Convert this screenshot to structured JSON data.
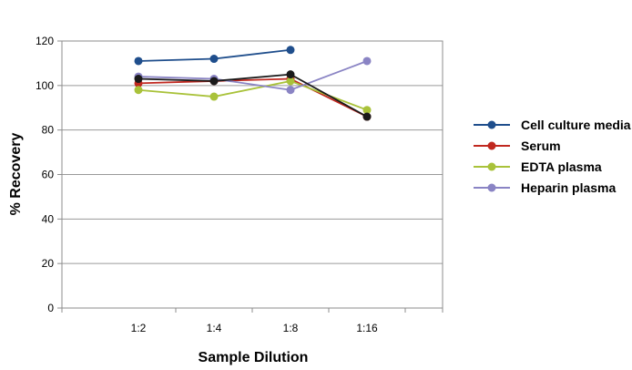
{
  "chart_data": {
    "type": "line",
    "categories": [
      "1:2",
      "1:4",
      "1:8",
      "1:16"
    ],
    "series": [
      {
        "name": "Cell culture media",
        "color": "#1F4E8C",
        "values": [
          111,
          112,
          116,
          null
        ]
      },
      {
        "name": "Serum",
        "color": "#C0281F",
        "values": [
          101,
          102,
          103,
          86
        ]
      },
      {
        "name": "EDTA plasma",
        "color": "#A9C23A",
        "values": [
          98,
          95,
          102,
          89
        ]
      },
      {
        "name": "Heparin plasma",
        "color": "#8A84C4",
        "values": [
          104,
          103,
          98,
          111
        ]
      },
      {
        "color": "#1A1A1A",
        "values": [
          103,
          102,
          105,
          86
        ]
      }
    ],
    "xlabel": "Sample Dilution",
    "ylabel": "% Recovery",
    "ylim": [
      0,
      120
    ],
    "yticks": [
      0,
      20,
      40,
      60,
      80,
      100,
      120
    ],
    "grid": true,
    "legend_position": "right"
  }
}
